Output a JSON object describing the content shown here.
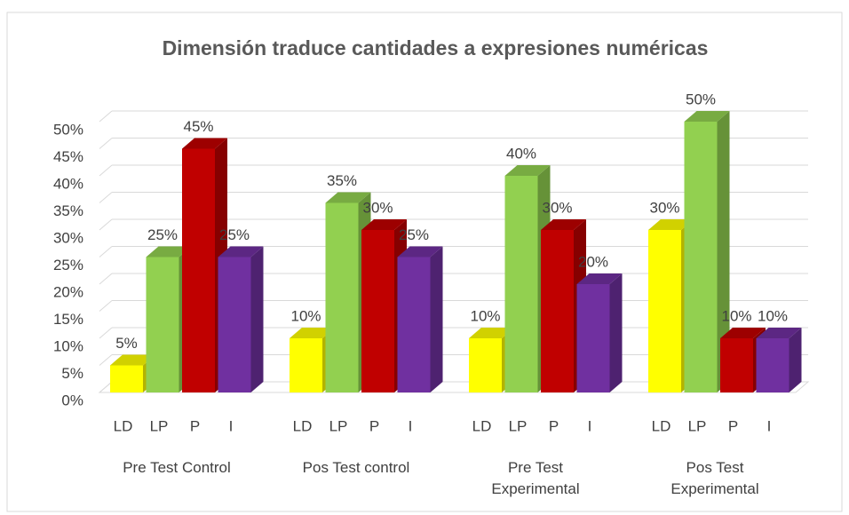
{
  "chart_data": {
    "type": "bar3d",
    "title": "Dimensión traduce cantidades a expresiones numéricas",
    "categories": [
      "Pre Test Control",
      "Pos Test control",
      "Pre Test Experimental",
      "Pos Test Experimental"
    ],
    "series": [
      {
        "name": "LD",
        "color": "#ffff00",
        "values": [
          5,
          10,
          10,
          30
        ],
        "value_labels": [
          "5%",
          "10%",
          "10%",
          "30%"
        ]
      },
      {
        "name": "LP",
        "color": "#92d050",
        "values": [
          25,
          35,
          40,
          50
        ],
        "value_labels": [
          "25%",
          "35%",
          "40%",
          "50%"
        ]
      },
      {
        "name": "P",
        "color": "#c00000",
        "values": [
          45,
          30,
          30,
          10
        ],
        "value_labels": [
          "45%",
          "30%",
          "30%",
          "10%"
        ]
      },
      {
        "name": "I",
        "color": "#7030a0",
        "values": [
          25,
          25,
          20,
          10
        ],
        "value_labels": [
          "25%",
          "25%",
          "20%",
          "10%"
        ]
      }
    ],
    "ylim": [
      0,
      50
    ],
    "yticks": [
      {
        "value": 0,
        "label": "0%"
      },
      {
        "value": 5,
        "label": "5%"
      },
      {
        "value": 10,
        "label": "10%"
      },
      {
        "value": 15,
        "label": "15%"
      },
      {
        "value": 20,
        "label": "20%"
      },
      {
        "value": 25,
        "label": "25%"
      },
      {
        "value": 30,
        "label": "30%"
      },
      {
        "value": 35,
        "label": "35%"
      },
      {
        "value": 40,
        "label": "40%"
      },
      {
        "value": 45,
        "label": "45%"
      },
      {
        "value": 50,
        "label": "50%"
      }
    ],
    "grid": true
  }
}
